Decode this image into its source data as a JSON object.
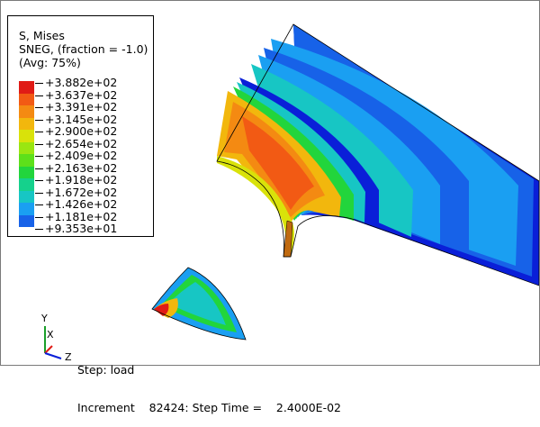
{
  "legend": {
    "title": "S, Mises",
    "subtitle": "SNEG, (fraction = -1.0)",
    "avg": "(Avg: 75%)",
    "levels": [
      {
        "label": "+3.882e+02",
        "color": "#e01b16"
      },
      {
        "label": "+3.637e+02",
        "color": "#f25a14"
      },
      {
        "label": "+3.391e+02",
        "color": "#f48a12"
      },
      {
        "label": "+3.145e+02",
        "color": "#f2b70d"
      },
      {
        "label": "+2.900e+02",
        "color": "#d9e20a"
      },
      {
        "label": "+2.654e+02",
        "color": "#9ae611"
      },
      {
        "label": "+2.409e+02",
        "color": "#5de01a"
      },
      {
        "label": "+2.163e+02",
        "color": "#22d53c"
      },
      {
        "label": "+1.918e+02",
        "color": "#15d18c"
      },
      {
        "label": "+1.672e+02",
        "color": "#17c6c4"
      },
      {
        "label": "+1.426e+02",
        "color": "#1a9ff2"
      },
      {
        "label": "+1.181e+02",
        "color": "#1762e8"
      },
      {
        "label": "+9.353e+01",
        "color": "#0a1fd8"
      }
    ]
  },
  "status": {
    "step": "Step: load",
    "increment": "Increment    82424: Step Time =    2.4000E-02"
  },
  "triad": {
    "y": "Y",
    "x": "X",
    "z": "Z"
  },
  "colors": {
    "frame": "#7a7a7a",
    "mesh_edge": "#000000"
  }
}
